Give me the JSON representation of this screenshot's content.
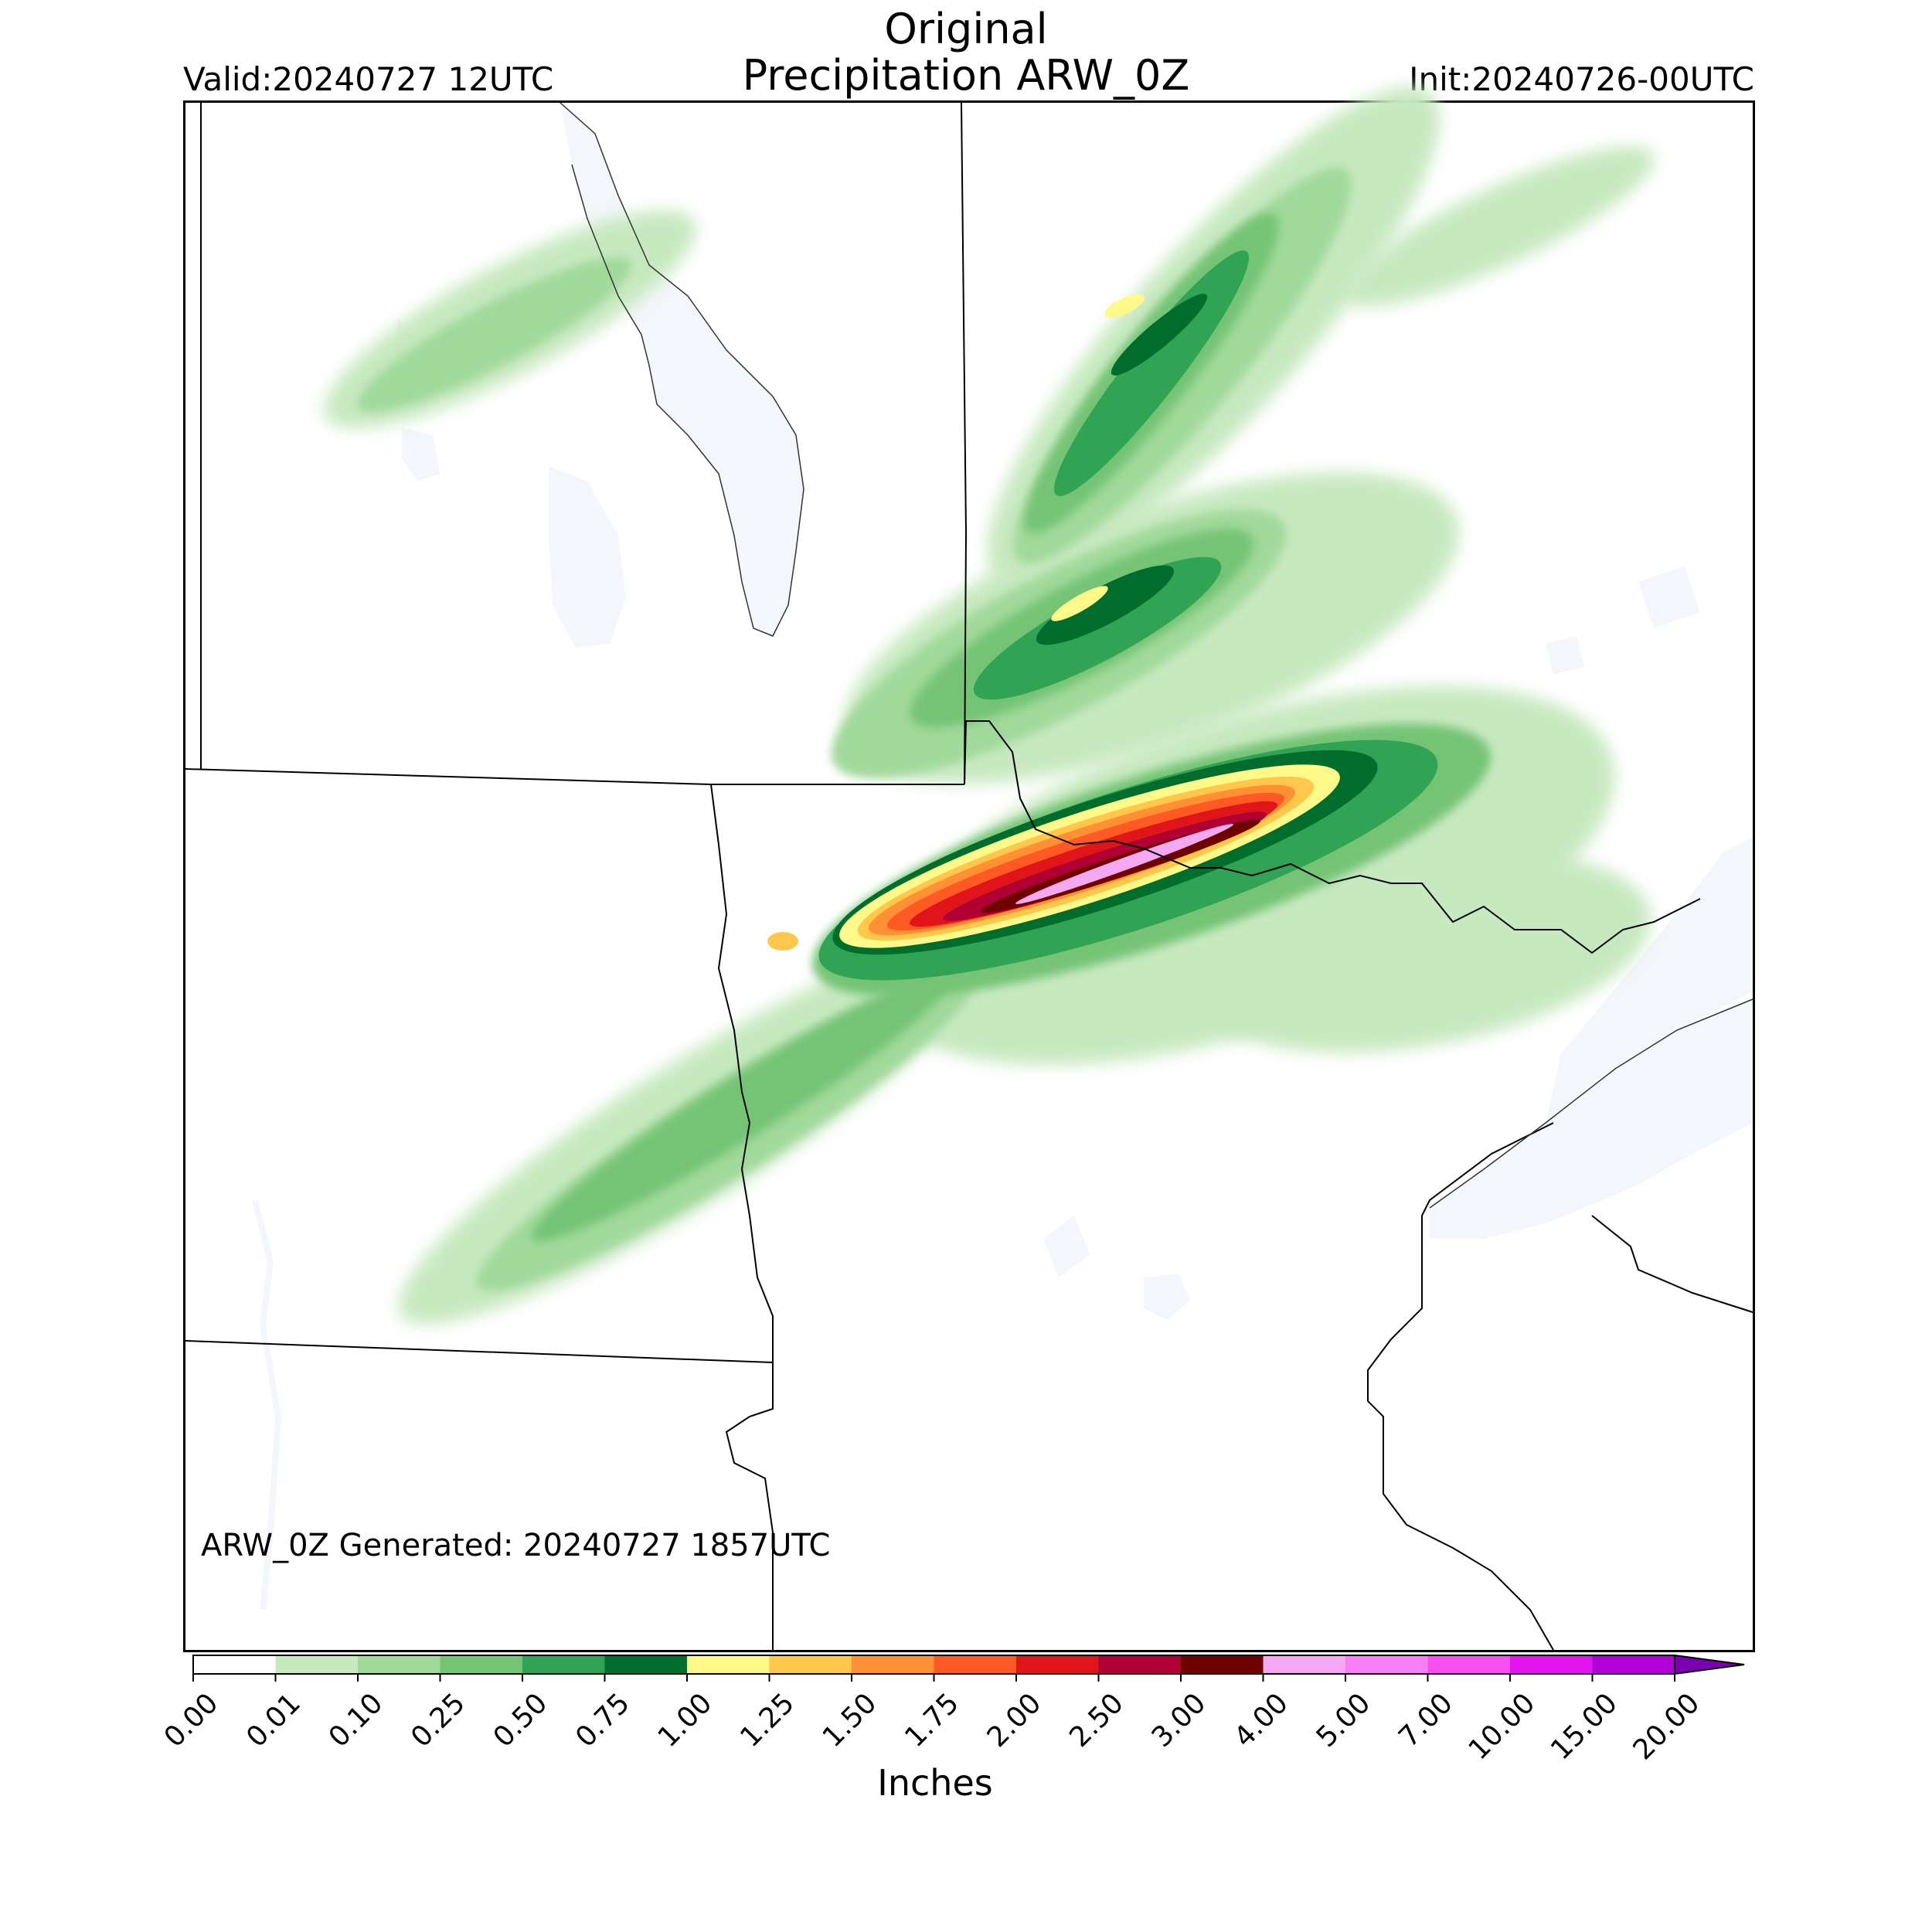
{
  "header": {
    "title_line1": "Original",
    "title_line2": "Precipitation ARW_0Z",
    "valid": "Valid:20240727 12UTC",
    "init": "Init:20240726-00UTC"
  },
  "map": {
    "generated_label": "ARW_0Z Generated: 20240727 1857UTC",
    "water_color": "#f3f6fa",
    "border_color": "#000000"
  },
  "colorbar": {
    "title": "Inches",
    "ticks": [
      "0.00",
      "0.01",
      "0.10",
      "0.25",
      "0.50",
      "0.75",
      "1.00",
      "1.25",
      "1.50",
      "1.75",
      "2.00",
      "2.50",
      "3.00",
      "4.00",
      "5.00",
      "7.00",
      "10.00",
      "15.00",
      "20.00"
    ],
    "colors": [
      "#ffffff",
      "#c7e9c0",
      "#a1d99b",
      "#74c476",
      "#31a354",
      "#006d2c",
      "#fff98a",
      "#ffc84d",
      "#ff9033",
      "#ff5a24",
      "#e0151a",
      "#b00033",
      "#6e0000",
      "#f5a8f2",
      "#f77ef5",
      "#f64ff0",
      "#e315ee",
      "#b400d8",
      "#7a00b0"
    ],
    "extend_color": "#7a00b0"
  }
}
